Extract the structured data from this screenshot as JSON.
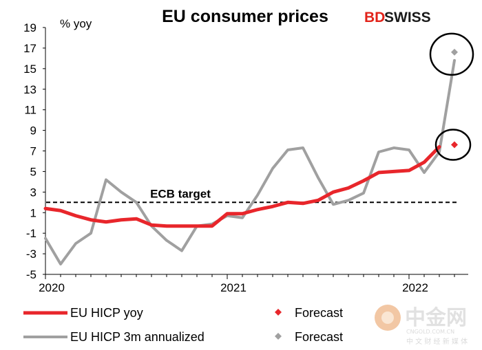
{
  "brand": {
    "logo_bd": "BD",
    "logo_swiss": "SWISS",
    "watermark_cn": "中金网",
    "watermark_url": "CNGOLD.COM.CN",
    "watermark_sub": "中 文 财 经 新 媒 体"
  },
  "colors": {
    "yoy": "#e8262b",
    "annualized": "#a0a0a0",
    "target": "#000000",
    "brand_red": "#e2231a"
  },
  "chart_data": {
    "type": "line",
    "title": "EU consumer prices",
    "ylabel": "% yoy",
    "xlabel": "",
    "ylim": [
      -5,
      19
    ],
    "yticks": [
      "19",
      "17",
      "15",
      "13",
      "11",
      "9",
      "7",
      "5",
      "3",
      "1",
      "-1",
      "-3",
      "-5"
    ],
    "x_start": "2020-01",
    "x_end": "2022-04",
    "xtick_labels": [
      {
        "label": "2020",
        "month_index": 0
      },
      {
        "label": "2021",
        "month_index": 12
      },
      {
        "label": "2022",
        "month_index": 24
      }
    ],
    "series": [
      {
        "name": "EU HICP yoy",
        "style": "line",
        "month_start": 0,
        "values": [
          1.4,
          1.2,
          0.7,
          0.3,
          0.1,
          0.3,
          0.4,
          -0.2,
          -0.3,
          -0.3,
          -0.3,
          -0.3,
          0.9,
          0.9,
          1.3,
          1.6,
          2.0,
          1.9,
          2.2,
          3.0,
          3.4,
          4.1,
          4.9,
          5.0,
          5.1,
          5.9,
          7.4
        ]
      },
      {
        "name": "EU HICP 3m annualized",
        "style": "line",
        "month_start": 0,
        "values": [
          -1.5,
          -4.0,
          -2.0,
          -1.0,
          4.2,
          3.0,
          2.0,
          -0.3,
          -1.7,
          -2.7,
          -0.3,
          -0.1,
          0.7,
          0.5,
          2.7,
          5.3,
          7.1,
          7.3,
          4.4,
          1.8,
          2.2,
          2.9,
          6.9,
          7.3,
          7.1,
          4.9,
          6.9,
          15.8
        ]
      },
      {
        "name": "Forecast",
        "style": "marker",
        "parent": "EU HICP yoy",
        "month_index": 27,
        "value": 7.6
      },
      {
        "name": "Forecast",
        "style": "marker",
        "parent": "EU HICP 3m annualized",
        "month_index": 27,
        "value": 16.6
      }
    ],
    "reference_line": {
      "label": "ECB target",
      "value": 2.0
    },
    "annotations": [
      "circle around 3m annualized forecast",
      "circle around yoy forecast"
    ],
    "legend": {
      "position": "bottom",
      "items": [
        {
          "label": "EU HICP yoy",
          "series": "yoy",
          "kind": "line"
        },
        {
          "label": "Forecast",
          "series": "yoy",
          "kind": "marker"
        },
        {
          "label": "EU HICP 3m annualized",
          "series": "annualized",
          "kind": "line"
        },
        {
          "label": "Forecast",
          "series": "annualized",
          "kind": "marker"
        }
      ]
    },
    "grid": false
  }
}
